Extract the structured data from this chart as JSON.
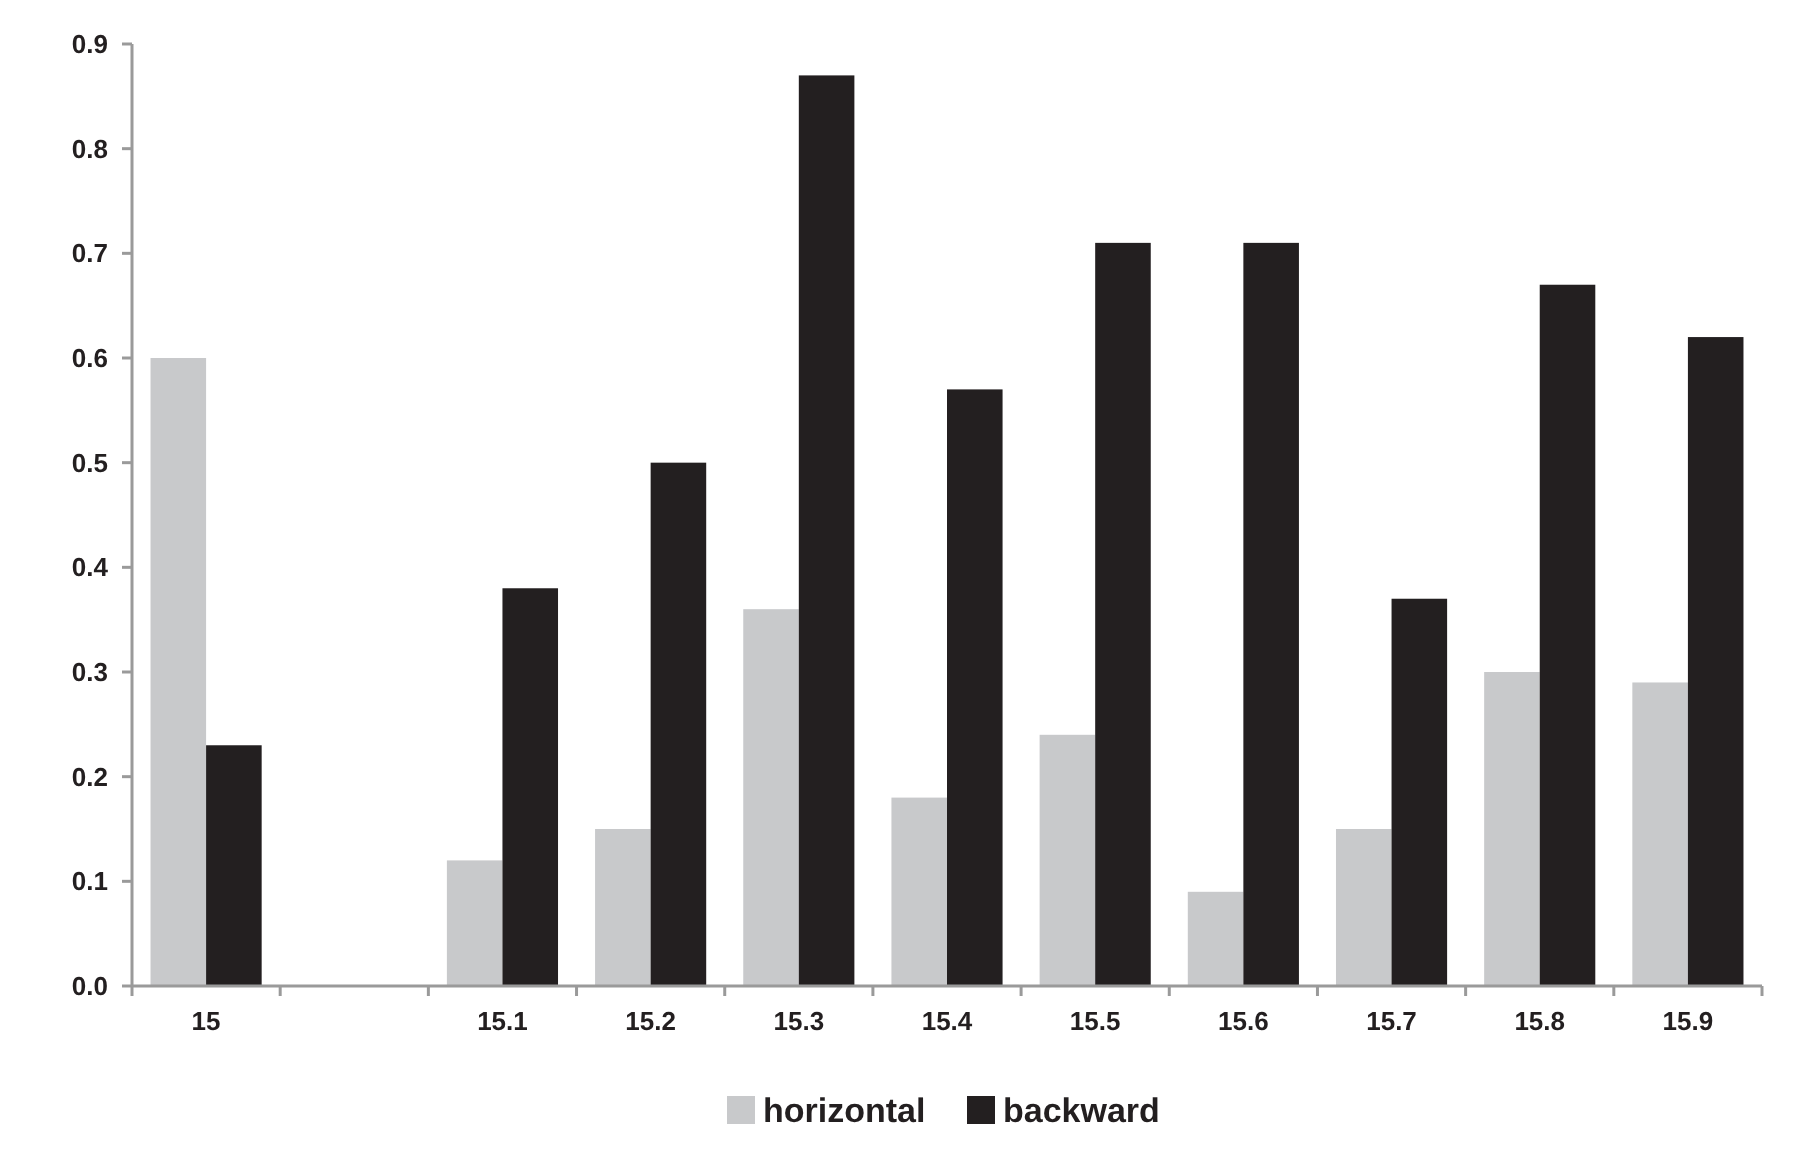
{
  "chart_data": {
    "type": "bar",
    "categories": [
      "15",
      null,
      "15.1",
      "15.2",
      "15.3",
      "15.4",
      "15.5",
      "15.6",
      "15.7",
      "15.8",
      "15.9"
    ],
    "series": [
      {
        "name": "horizontal",
        "color": "#c8c9cb",
        "values": [
          0.6,
          null,
          0.12,
          0.15,
          0.36,
          0.18,
          0.24,
          0.09,
          0.15,
          0.3,
          0.29
        ]
      },
      {
        "name": "backward",
        "color": "#231f20",
        "values": [
          0.23,
          null,
          0.38,
          0.5,
          0.87,
          0.57,
          0.71,
          0.71,
          0.37,
          0.67,
          0.62
        ]
      }
    ],
    "ylim": [
      0,
      0.9
    ],
    "yticks": [
      {
        "value": 0,
        "label": "0.0"
      },
      0.1,
      0.2,
      0.3,
      0.4,
      0.5,
      0.6,
      0.7,
      0.8,
      0.9
    ],
    "grid": false,
    "legend": "bottom"
  }
}
